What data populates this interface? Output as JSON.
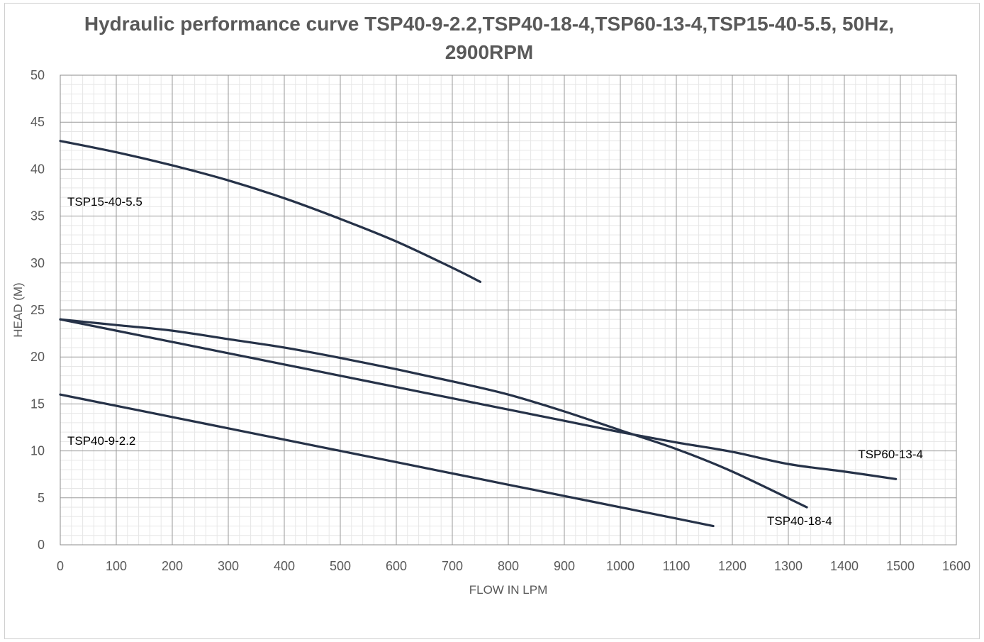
{
  "chart_data": {
    "type": "line",
    "title": "Hydraulic performance curve TSP40-9-2.2,TSP40-18-4,TSP60-13-4,TSP15-40-5.5, 50Hz, 2900RPM",
    "xlabel": "FLOW IN LPM",
    "ylabel": "HEAD (M)",
    "xlim": [
      0,
      1600
    ],
    "ylim": [
      0,
      50
    ],
    "xticks": [
      0,
      100,
      200,
      300,
      400,
      500,
      600,
      700,
      800,
      900,
      1000,
      1100,
      1200,
      1300,
      1400,
      1500,
      1600
    ],
    "yticks": [
      0,
      5,
      10,
      15,
      20,
      25,
      30,
      35,
      40,
      45,
      50
    ],
    "grid": true,
    "legend": "none",
    "line_color": "#263248",
    "series": [
      {
        "name": "TSP15-40-5.5",
        "x": [
          0,
          100,
          200,
          300,
          400,
          500,
          600,
          700,
          750
        ],
        "y": [
          43,
          41.8,
          40.4,
          38.8,
          36.9,
          34.7,
          32.3,
          29.5,
          28
        ]
      },
      {
        "name": "TSP40-18-4",
        "x": [
          0,
          100,
          200,
          300,
          400,
          500,
          600,
          700,
          800,
          900,
          1000,
          1100,
          1200,
          1333
        ],
        "y": [
          24,
          23.4,
          22.8,
          21.9,
          21,
          19.9,
          18.7,
          17.4,
          16,
          14.2,
          12.2,
          10.2,
          7.8,
          4
        ]
      },
      {
        "name": "TSP60-13-4",
        "x": [
          0,
          100,
          200,
          300,
          400,
          500,
          600,
          700,
          800,
          900,
          1000,
          1100,
          1200,
          1300,
          1400,
          1492
        ],
        "y": [
          24,
          22.8,
          21.6,
          20.4,
          19.2,
          18,
          16.8,
          15.6,
          14.4,
          13.2,
          12,
          10.9,
          9.9,
          8.6,
          7.8,
          7
        ]
      },
      {
        "name": "TSP40-9-2.2",
        "x": [
          0,
          100,
          200,
          300,
          400,
          500,
          600,
          700,
          800,
          900,
          1000,
          1100,
          1166
        ],
        "y": [
          16,
          14.8,
          13.6,
          12.4,
          11.2,
          10,
          8.8,
          7.6,
          6.4,
          5.2,
          4,
          2.8,
          2
        ]
      }
    ]
  }
}
